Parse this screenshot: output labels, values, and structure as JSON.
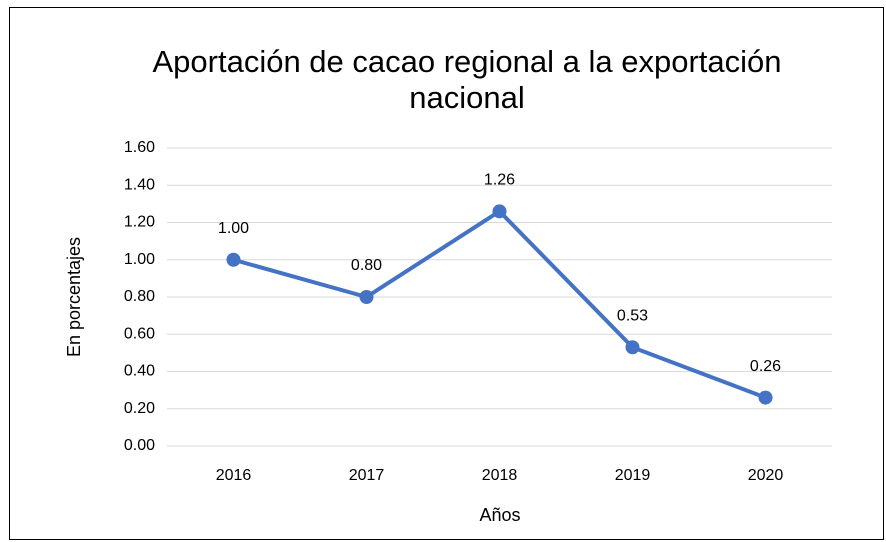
{
  "chart_data": {
    "type": "line",
    "title": "Aportación de cacao regional a la exportación nacional",
    "x_label": "Años",
    "y_label": "En porcentajes",
    "categories": [
      "2016",
      "2017",
      "2018",
      "2019",
      "2020"
    ],
    "series": [
      {
        "name": "Aportación",
        "color": "#4472c4",
        "values": [
          1.0,
          0.8,
          1.26,
          0.53,
          0.26
        ],
        "value_labels": [
          "1.00",
          "0.80",
          "1.26",
          "0.53",
          "0.26"
        ]
      }
    ],
    "ylim": [
      0,
      1.6
    ],
    "yticks": [
      {
        "value": 0,
        "label": "0.00"
      },
      {
        "value": 0.2,
        "label": "0.20"
      },
      {
        "value": 0.4,
        "label": "0.40"
      },
      {
        "value": 0.6,
        "label": "0.60"
      },
      {
        "value": 0.8,
        "label": "0.80"
      },
      {
        "value": 1.0,
        "label": "1.00"
      },
      {
        "value": 1.2,
        "label": "1.20"
      },
      {
        "value": 1.4,
        "label": "1.40"
      },
      {
        "value": 1.6,
        "label": "1.60"
      }
    ],
    "grid": true
  }
}
